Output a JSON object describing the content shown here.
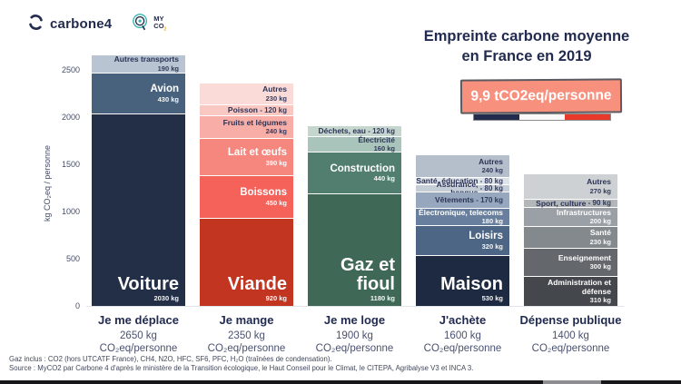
{
  "header": {
    "carbone4_wordmark": "carbone4",
    "myco2_line1": "MY",
    "myco2_line2": "CO",
    "myco2_sub": "2",
    "title_line1": "Empreinte carbone moyenne",
    "title_line2": "en France en 2019",
    "badge_label": "9,9 tCO2eq/personne"
  },
  "icons": {
    "carbone4": "circular-arrows-icon",
    "myco2": "magnifier-rings-icon"
  },
  "colors": {
    "title_navy": "#222b50",
    "badge_bg": "#f8907e",
    "dark_text": "#2b3356",
    "flag": [
      "#242c4e",
      "#fafafa",
      "#e8392b"
    ]
  },
  "chart_data": {
    "type": "bar",
    "stacked": true,
    "title": "Empreinte carbone moyenne en France en 2019",
    "overall_total": "9,9 tCO2eq/personne",
    "ylabel": "kg CO₂eq / personne",
    "ylim": [
      0,
      2500
    ],
    "yticks": [
      0,
      500,
      1000,
      1500,
      2000,
      2500
    ],
    "grid": false,
    "categories": [
      {
        "label": "Je me déplace",
        "total_kg": 2650,
        "total_line1": "2650 kg",
        "total_line2": "CO₂eq/personne",
        "segments": [
          {
            "name": "Autres transports",
            "kg": 190,
            "value_label": "190 kg",
            "color": "#b8c4d2",
            "text": "dark",
            "style": "sm"
          },
          {
            "name": "Avion",
            "kg": 430,
            "value_label": "430 kg",
            "color": "#48627d",
            "text": "light",
            "style": "lg"
          },
          {
            "name": "Voiture",
            "kg": 2030,
            "value_label": "2030 kg",
            "color": "#222f47",
            "text": "light",
            "style": "xl"
          }
        ]
      },
      {
        "label": "Je mange",
        "total_kg": 2350,
        "total_line1": "2350 kg",
        "total_line2": "CO₂eq/personne",
        "segments": [
          {
            "name": "Autres",
            "kg": 230,
            "value_label": "230 kg",
            "color": "#fbdbd7",
            "text": "dark",
            "style": "sm"
          },
          {
            "name": "Poisson",
            "kg": 120,
            "value_label": "120 kg",
            "color": "#f9c8c3",
            "text": "dark",
            "style": "inline"
          },
          {
            "name": "Fruits et légumes",
            "kg": 240,
            "value_label": "240 kg",
            "color": "#f8ada6",
            "text": "dark",
            "style": "sm"
          },
          {
            "name": "Lait et œufs",
            "kg": 390,
            "value_label": "390 kg",
            "color": "#f5877e",
            "text": "light",
            "style": "lg"
          },
          {
            "name": "Boissons",
            "kg": 450,
            "value_label": "450 kg",
            "color": "#f4625a",
            "text": "light",
            "style": "lg"
          },
          {
            "name": "Viande",
            "kg": 920,
            "value_label": "920 kg",
            "color": "#c23520",
            "text": "light",
            "style": "xl"
          }
        ]
      },
      {
        "label": "Je me loge",
        "total_kg": 1900,
        "total_line1": "1900 kg",
        "total_line2": "CO₂eq/personne",
        "segments": [
          {
            "name": "Déchets, eau",
            "kg": 120,
            "value_label": "120 kg",
            "color": "#c5d6cf",
            "text": "dark",
            "style": "inline"
          },
          {
            "name": "Électricité",
            "kg": 160,
            "value_label": "160 kg",
            "color": "#a9c5bb",
            "text": "dark",
            "style": "sm"
          },
          {
            "name": "Construction",
            "kg": 440,
            "value_label": "440 kg",
            "color": "#527e6f",
            "text": "light",
            "style": "lg"
          },
          {
            "name": "Gaz et fioul",
            "kg": 1180,
            "value_label": "1180 kg",
            "color": "#3f6857",
            "text": "light",
            "style": "xl"
          }
        ]
      },
      {
        "label": "J'achète",
        "total_kg": 1600,
        "total_line1": "1600 kg",
        "total_line2": "CO₂eq/personne",
        "segments": [
          {
            "name": "Autres",
            "kg": 240,
            "value_label": "240 kg",
            "color": "#b5bfcb",
            "text": "dark",
            "style": "sm"
          },
          {
            "name": "Santé, éducation",
            "kg": 80,
            "value_label": "80 kg",
            "color": "#dee3e9",
            "text": "dark",
            "style": "inline"
          },
          {
            "name": "Assurance, banque",
            "kg": 80,
            "value_label": "80 kg",
            "color": "#c5cdd7",
            "text": "dark",
            "style": "inline"
          },
          {
            "name": "Vêtements",
            "kg": 170,
            "value_label": "170 kg",
            "color": "#97a8be",
            "text": "dark",
            "style": "inline"
          },
          {
            "name": "Électronique, telecoms",
            "kg": 180,
            "value_label": "180 kg",
            "color": "#68809e",
            "text": "light",
            "style": "sm"
          },
          {
            "name": "Loisirs",
            "kg": 320,
            "value_label": "320 kg",
            "color": "#4d6685",
            "text": "light",
            "style": "lg"
          },
          {
            "name": "Maison",
            "kg": 530,
            "value_label": "530 kg",
            "color": "#1d2a41",
            "text": "light",
            "style": "xl"
          }
        ]
      },
      {
        "label": "Dépense publique",
        "total_kg": 1400,
        "total_line1": "1400 kg",
        "total_line2": "CO₂eq/personne",
        "segments": [
          {
            "name": "Autres",
            "kg": 270,
            "value_label": "270 kg",
            "color": "#cdd1d4",
            "text": "dark",
            "style": "sm"
          },
          {
            "name": "Sport, culture",
            "kg": 90,
            "value_label": "90 kg",
            "color": "#b3b7ba",
            "text": "dark",
            "style": "inline"
          },
          {
            "name": "Infrastructures",
            "kg": 200,
            "value_label": "200 kg",
            "color": "#9aa0a5",
            "text": "light",
            "style": "sm"
          },
          {
            "name": "Santé",
            "kg": 230,
            "value_label": "230 kg",
            "color": "#84898e",
            "text": "light",
            "style": "sm"
          },
          {
            "name": "Enseignement",
            "kg": 300,
            "value_label": "300 kg",
            "color": "#64686d",
            "text": "light",
            "style": "sm"
          },
          {
            "name": "Administration et défense",
            "kg": 310,
            "value_label": "310 kg",
            "color": "#44474c",
            "text": "light",
            "style": "sm"
          }
        ]
      }
    ]
  },
  "footnote": {
    "gases": "Gaz inclus : CO2 (hors UTCATF France), CH4, N2O, HFC, SF6, PFC, H₂O (traînées de condensation).",
    "source": "Source : MyCO2 par Carbone 4 d'après le ministère de la Transition écologique, le Haut Conseil pour le Climat, le CITEPA, Agribalyse V3 et INCA 3."
  }
}
